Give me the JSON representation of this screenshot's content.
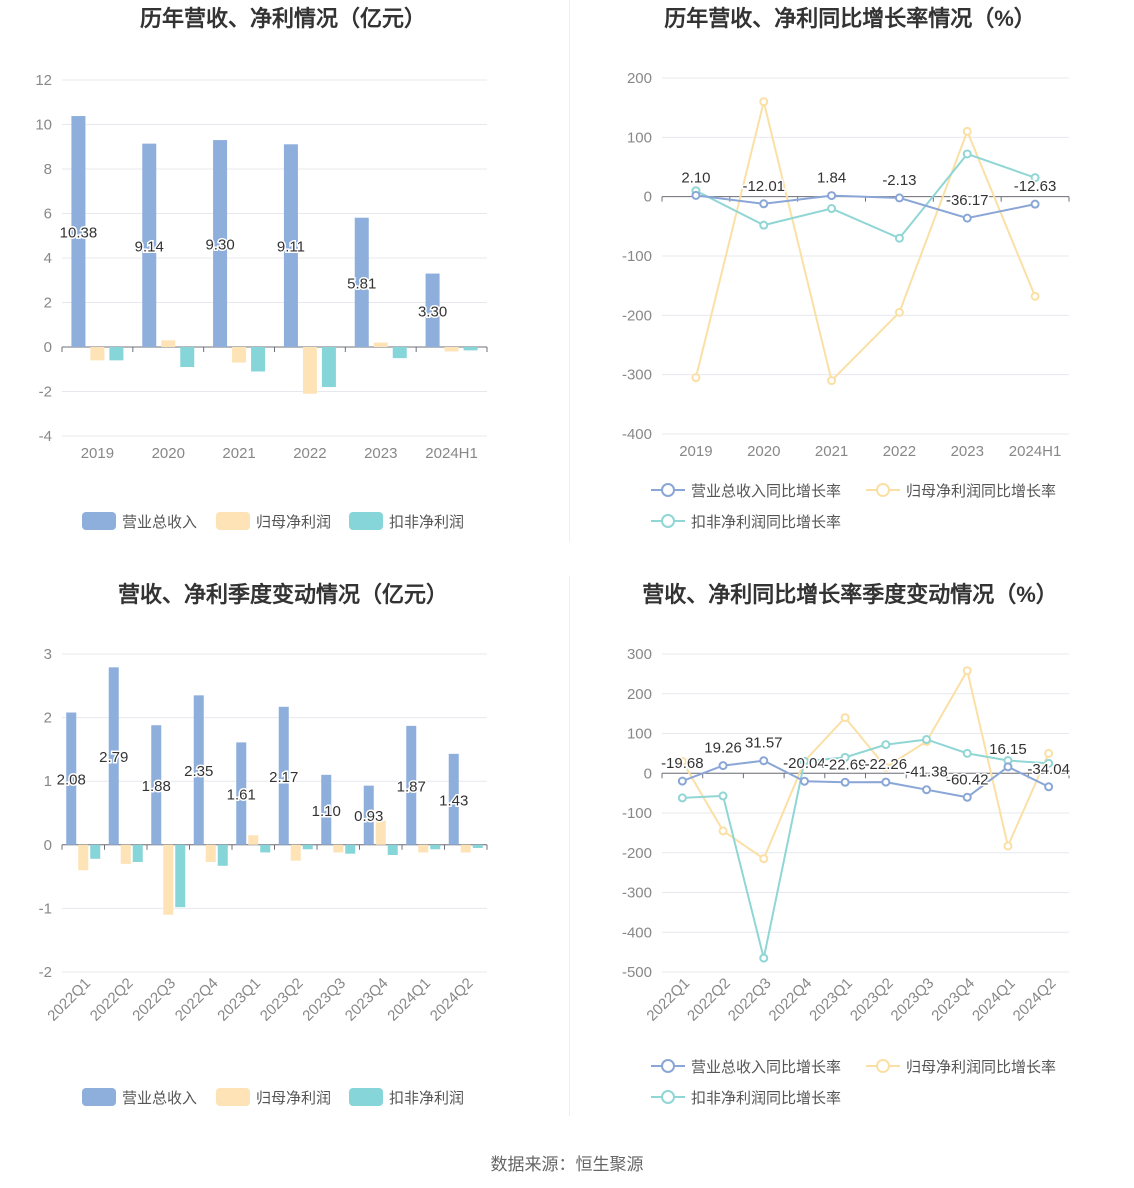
{
  "footer": {
    "source": "数据来源：恒生聚源"
  },
  "colors": {
    "revenue": "#8eaedb",
    "net_profit": "#fde3b6",
    "deducted_profit": "#86d5d8",
    "revenue_line": "#8aa6d6",
    "net_profit_line": "#fbe0a6",
    "deducted_line": "#8fd6d5",
    "grid": "#e6e8ee",
    "axis_text": "#888888",
    "title_text": "#333333",
    "label_text": "#333333",
    "legend_text": "#555555"
  },
  "chart_data": [
    {
      "type": "bar",
      "title": "历年营收、净利情况（亿元）",
      "xlabel": "",
      "ylabel": "",
      "categories": [
        "2019",
        "2020",
        "2021",
        "2022",
        "2023",
        "2024H1"
      ],
      "ylim": [
        -4,
        12
      ],
      "yticks": [
        -4,
        -2,
        0,
        2,
        4,
        6,
        8,
        10,
        12
      ],
      "series": [
        {
          "name": "营业总收入",
          "values": [
            10.38,
            9.14,
            9.3,
            9.11,
            5.81,
            3.3
          ],
          "labels": [
            "10.38",
            "9.14",
            "9.30",
            "9.11",
            "5.81",
            "3.30"
          ]
        },
        {
          "name": "归母净利润",
          "values": [
            -0.6,
            0.3,
            -0.7,
            -2.1,
            0.2,
            -0.2
          ]
        },
        {
          "name": "扣非净利润",
          "values": [
            -0.6,
            -0.9,
            -1.1,
            -1.8,
            -0.5,
            -0.15
          ]
        }
      ],
      "grid": true,
      "legend": "bottom"
    },
    {
      "type": "line",
      "title": "历年营收、净利同比增长率情况（%）",
      "xlabel": "",
      "ylabel": "",
      "categories": [
        "2019",
        "2020",
        "2021",
        "2022",
        "2023",
        "2024H1"
      ],
      "ylim": [
        -400,
        200
      ],
      "yticks": [
        -400,
        -300,
        -200,
        -100,
        0,
        100,
        200
      ],
      "series": [
        {
          "name": "营业总收入同比增长率",
          "values": [
            2.1,
            -12.01,
            1.84,
            -2.13,
            -36.17,
            -12.63
          ],
          "labels": [
            "2.10",
            "-12.01",
            "1.84",
            "-2.13",
            "-36.17",
            "-12.63"
          ]
        },
        {
          "name": "归母净利润同比增长率",
          "values": [
            -305,
            160,
            -310,
            -195,
            110,
            -168
          ]
        },
        {
          "name": "扣非净利润同比增长率",
          "values": [
            10,
            -48,
            -20,
            -70,
            72,
            32
          ]
        }
      ],
      "grid": true,
      "legend": "bottom"
    },
    {
      "type": "bar",
      "title": "营收、净利季度变动情况（亿元）",
      "xlabel": "",
      "ylabel": "",
      "categories": [
        "2022Q1",
        "2022Q2",
        "2022Q3",
        "2022Q4",
        "2023Q1",
        "2023Q2",
        "2023Q3",
        "2023Q4",
        "2024Q1",
        "2024Q2"
      ],
      "ylim": [
        -2,
        3
      ],
      "yticks": [
        -2,
        -1,
        0,
        1,
        2,
        3
      ],
      "series": [
        {
          "name": "营业总收入",
          "values": [
            2.08,
            2.79,
            1.88,
            2.35,
            1.61,
            2.17,
            1.1,
            0.93,
            1.87,
            1.43
          ],
          "labels": [
            "2.08",
            "2.79",
            "1.88",
            "2.35",
            "1.61",
            "2.17",
            "1.10",
            "0.93",
            "1.87",
            "1.43"
          ]
        },
        {
          "name": "归母净利润",
          "values": [
            -0.4,
            -0.3,
            -1.1,
            -0.27,
            0.15,
            -0.25,
            -0.12,
            0.38,
            -0.12,
            -0.12
          ]
        },
        {
          "name": "扣非净利润",
          "values": [
            -0.22,
            -0.27,
            -0.98,
            -0.33,
            -0.12,
            -0.07,
            -0.14,
            -0.16,
            -0.07,
            -0.05
          ]
        }
      ],
      "grid": true,
      "legend": "bottom"
    },
    {
      "type": "line",
      "title": "营收、净利同比增长率季度变动情况（%）",
      "xlabel": "",
      "ylabel": "",
      "categories": [
        "2022Q1",
        "2022Q2",
        "2022Q3",
        "2022Q4",
        "2023Q1",
        "2023Q2",
        "2023Q3",
        "2023Q4",
        "2024Q1",
        "2024Q2"
      ],
      "ylim": [
        -500,
        300
      ],
      "yticks": [
        -500,
        -400,
        -300,
        -200,
        -100,
        0,
        100,
        200,
        300
      ],
      "series": [
        {
          "name": "营业总收入同比增长率",
          "values": [
            -19.68,
            19.26,
            31.57,
            -20.04,
            -22.69,
            -22.26,
            -41.38,
            -60.42,
            16.15,
            -34.04
          ],
          "labels": [
            "-19.68",
            "19.26",
            "31.57",
            "-20.04",
            "-22.69",
            "-22.26",
            "-41.38",
            "-60.42",
            "16.15",
            "-34.04"
          ]
        },
        {
          "name": "归母净利润同比增长率",
          "values": [
            30,
            -145,
            -215,
            30,
            140,
            15,
            80,
            258,
            -183,
            50
          ]
        },
        {
          "name": "扣非净利润同比增长率",
          "values": [
            -62,
            -57,
            -465,
            30,
            40,
            72,
            85,
            50,
            32,
            25
          ]
        }
      ],
      "grid": true,
      "legend": "bottom"
    }
  ]
}
